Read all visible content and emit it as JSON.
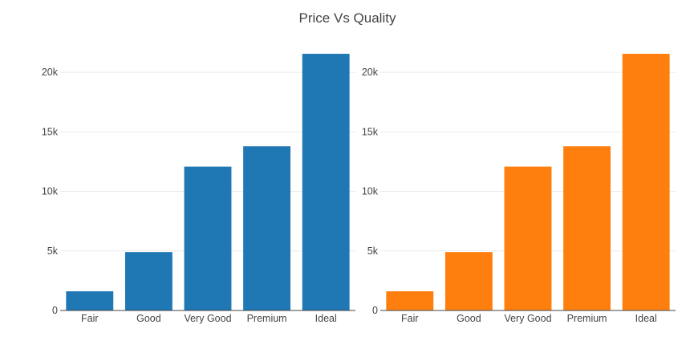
{
  "chart_data": {
    "title": "Price Vs Quality",
    "panels": [
      {
        "type": "bar",
        "categories": [
          "Fair",
          "Good",
          "Very Good",
          "Premium",
          "Ideal"
        ],
        "values": [
          1610,
          4906,
          12082,
          13791,
          21551
        ],
        "color": "#1f77b4",
        "ylim": [
          0,
          22700
        ],
        "yticks": [
          0,
          5000,
          10000,
          15000,
          20000
        ],
        "ytick_labels": [
          "0",
          "5k",
          "10k",
          "15k",
          "20k"
        ],
        "grid": true
      },
      {
        "type": "bar",
        "categories": [
          "Fair",
          "Good",
          "Very Good",
          "Premium",
          "Ideal"
        ],
        "values": [
          1610,
          4906,
          12082,
          13791,
          21551
        ],
        "color": "#ff7f0e",
        "ylim": [
          0,
          22700
        ],
        "yticks": [
          0,
          5000,
          10000,
          15000,
          20000
        ],
        "ytick_labels": [
          "0",
          "5k",
          "10k",
          "15k",
          "20k"
        ],
        "grid": true
      }
    ]
  }
}
